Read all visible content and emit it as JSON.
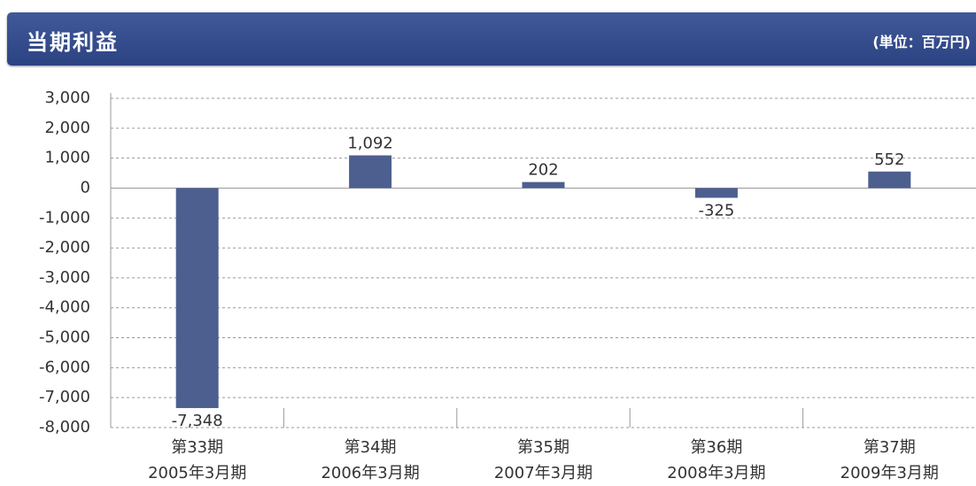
{
  "header": {
    "title": "当期利益",
    "unit": "(単位：百万円)"
  },
  "chart_data": {
    "type": "bar",
    "categories": [
      [
        "第33期",
        "2005年3月期"
      ],
      [
        "第34期",
        "2006年3月期"
      ],
      [
        "第35期",
        "2007年3月期"
      ],
      [
        "第36期",
        "2008年3月期"
      ],
      [
        "第37期",
        "2009年3月期"
      ]
    ],
    "values": [
      -7348,
      1092,
      202,
      -325,
      552
    ],
    "value_labels": [
      "-7,348",
      "1,092",
      "202",
      "-325",
      "552"
    ],
    "color": "#4d5f8f",
    "negative_color": "#e0531c",
    "ylim": [
      -8000,
      3000
    ],
    "yticks": [
      {
        "value": 3000,
        "label": "3,000"
      },
      {
        "value": 2000,
        "label": "2,000"
      },
      {
        "value": 1000,
        "label": "1,000"
      },
      0,
      {
        "value": -1000,
        "label": "-1,000"
      },
      {
        "value": -2000,
        "label": "-2,000"
      },
      {
        "value": -3000,
        "label": "-3,000"
      },
      {
        "value": -4000,
        "label": "-4,000"
      },
      {
        "value": -5000,
        "label": "-5,000"
      },
      {
        "value": -6000,
        "label": "-6,000"
      },
      {
        "value": -7000,
        "label": "-7,000"
      },
      {
        "value": -8000,
        "label": "-8,000"
      }
    ],
    "grid": true
  }
}
